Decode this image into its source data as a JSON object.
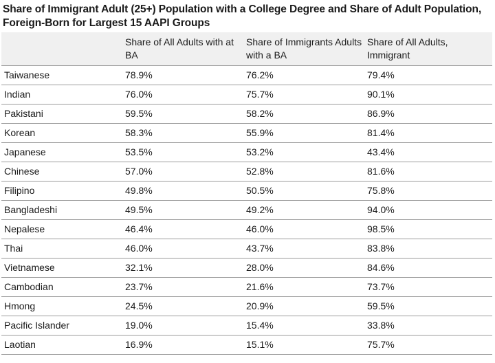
{
  "title": "Share of Immigrant Adult (25+) Population with a College Degree and Share of Adult Population, Foreign-Born for Largest 15 AAPI Groups",
  "chart_data": {
    "type": "table",
    "title": "Share of Immigrant Adult (25+) Population with a College Degree and Share of Adult Population, Foreign-Born for Largest 15 AAPI Groups",
    "columns": [
      "",
      "Share of All Adults with at BA",
      "Share of Immigrants Adults with a BA",
      "Share of All Adults, Immigrant"
    ],
    "rows": [
      [
        "Taiwanese",
        "78.9%",
        "76.2%",
        "79.4%"
      ],
      [
        "Indian",
        "76.0%",
        "75.7%",
        "90.1%"
      ],
      [
        "Pakistani",
        "59.5%",
        "58.2%",
        "86.9%"
      ],
      [
        "Korean",
        "58.3%",
        "55.9%",
        "81.4%"
      ],
      [
        "Japanese",
        "53.5%",
        "53.2%",
        "43.4%"
      ],
      [
        "Chinese",
        "57.0%",
        "52.8%",
        "81.6%"
      ],
      [
        "Filipino",
        "49.8%",
        "50.5%",
        "75.8%"
      ],
      [
        "Bangladeshi",
        "49.5%",
        "49.2%",
        "94.0%"
      ],
      [
        "Nepalese",
        "46.4%",
        "46.0%",
        "98.5%"
      ],
      [
        "Thai",
        "46.0%",
        "43.7%",
        "83.8%"
      ],
      [
        "Vietnamese",
        "32.1%",
        "28.0%",
        "84.6%"
      ],
      [
        "Cambodian",
        "23.7%",
        "21.6%",
        "73.7%"
      ],
      [
        "Hmong",
        "24.5%",
        "20.9%",
        "59.5%"
      ],
      [
        "Pacific Islander",
        "19.0%",
        "15.4%",
        "33.8%"
      ],
      [
        "Laotian",
        "16.9%",
        "15.1%",
        "75.7%"
      ]
    ]
  }
}
